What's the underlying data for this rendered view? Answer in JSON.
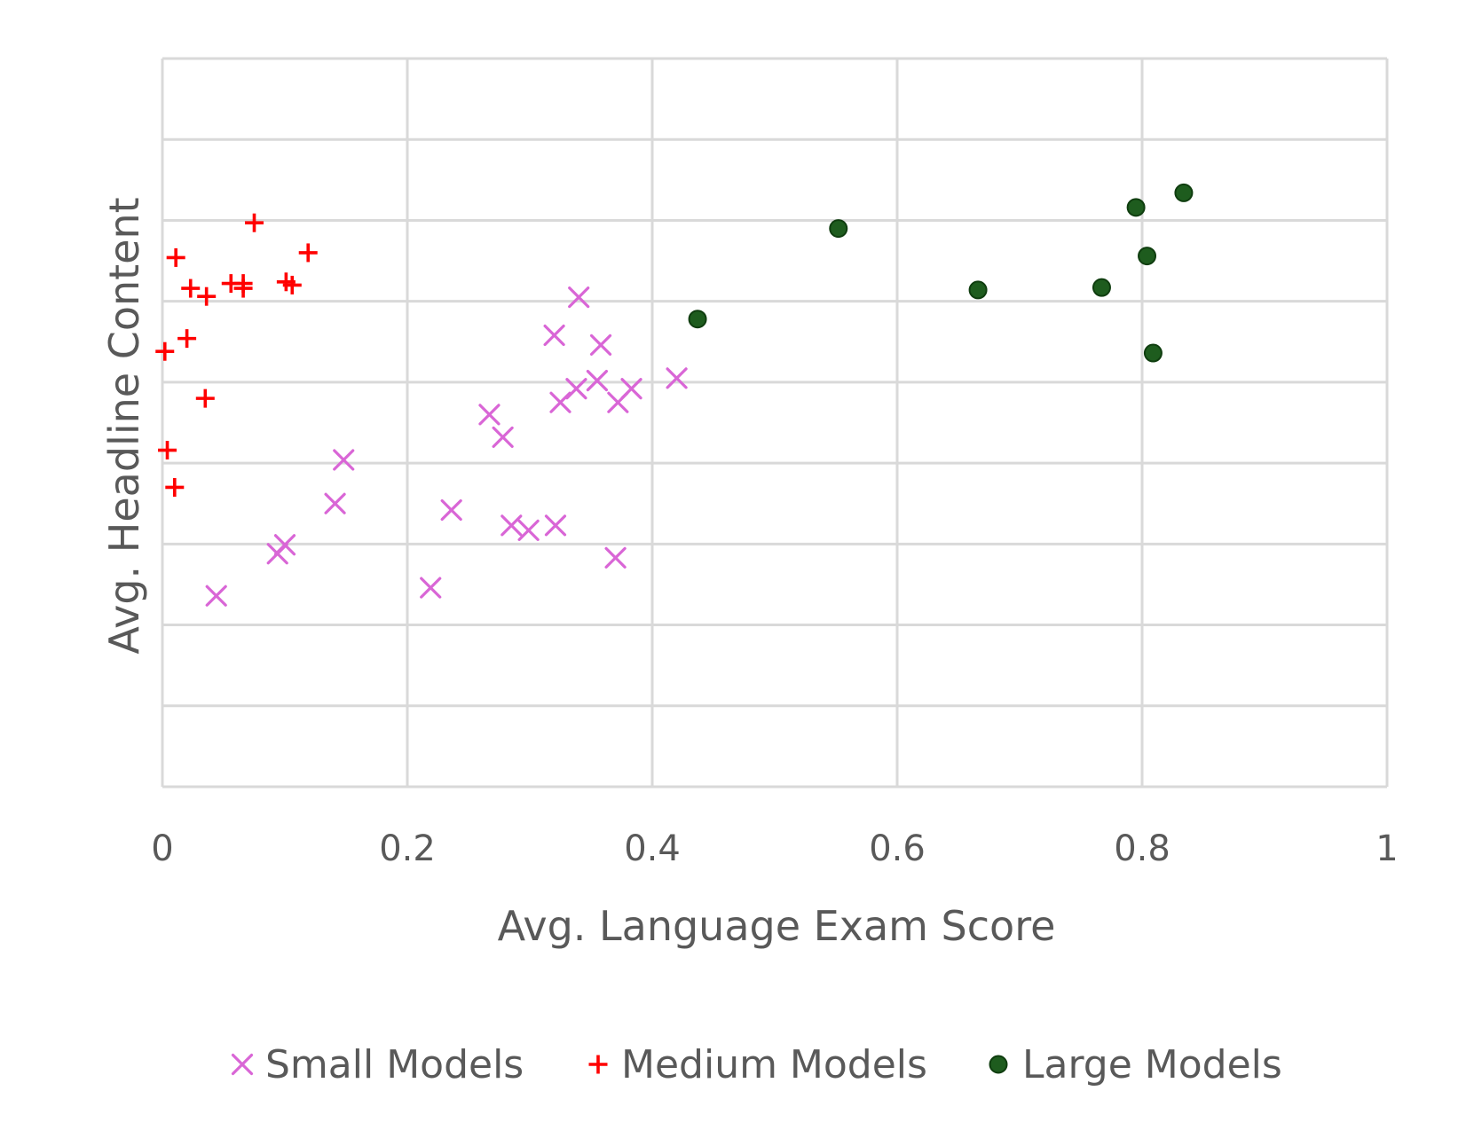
{
  "chart_data": {
    "type": "scatter",
    "title": "",
    "xlabel": "Avg. Language Exam Score",
    "ylabel": "Avg. Headline Content",
    "xlim": [
      0,
      1
    ],
    "ylim": [
      0,
      9
    ],
    "x_ticks": [
      "0",
      "0.2",
      "0.4",
      "0.6",
      "0.8",
      "1"
    ],
    "y_ticks_shown": false,
    "grid": true,
    "legend_position": "bottom",
    "colors": {
      "small": "#d966d6",
      "medium": "#ff0000",
      "large": "#1e5c1e",
      "large_edge": "#0f3d0f"
    },
    "series": [
      {
        "name": "Small Models",
        "marker": "x",
        "points": [
          [
            0.34,
            6.05
          ],
          [
            0.32,
            5.58
          ],
          [
            0.358,
            5.46
          ],
          [
            0.42,
            5.05
          ],
          [
            0.355,
            5.02
          ],
          [
            0.338,
            4.92
          ],
          [
            0.383,
            4.92
          ],
          [
            0.325,
            4.75
          ],
          [
            0.372,
            4.75
          ],
          [
            0.267,
            4.6
          ],
          [
            0.278,
            4.32
          ],
          [
            0.148,
            4.04
          ],
          [
            0.141,
            3.5
          ],
          [
            0.236,
            3.42
          ],
          [
            0.285,
            3.23
          ],
          [
            0.321,
            3.23
          ],
          [
            0.299,
            3.17
          ],
          [
            0.1,
            2.99
          ],
          [
            0.094,
            2.88
          ],
          [
            0.37,
            2.83
          ],
          [
            0.219,
            2.46
          ],
          [
            0.044,
            2.36
          ]
        ]
      },
      {
        "name": "Medium Models",
        "marker": "plus",
        "points": [
          [
            0.075,
            6.97
          ],
          [
            0.011,
            6.54
          ],
          [
            0.119,
            6.6
          ],
          [
            0.056,
            6.22
          ],
          [
            0.066,
            6.22
          ],
          [
            0.101,
            6.24
          ],
          [
            0.106,
            6.2
          ],
          [
            0.023,
            6.16
          ],
          [
            0.036,
            6.06
          ],
          [
            0.066,
            6.16
          ],
          [
            0.02,
            5.54
          ],
          [
            0.002,
            5.38
          ],
          [
            0.035,
            4.8
          ],
          [
            0.004,
            4.16
          ],
          [
            0.01,
            3.7
          ]
        ]
      },
      {
        "name": "Large Models",
        "marker": "circle",
        "points": [
          [
            0.834,
            7.34
          ],
          [
            0.795,
            7.16
          ],
          [
            0.552,
            6.9
          ],
          [
            0.804,
            6.56
          ],
          [
            0.767,
            6.17
          ],
          [
            0.666,
            6.14
          ],
          [
            0.437,
            5.78
          ],
          [
            0.809,
            5.36
          ]
        ]
      }
    ]
  }
}
